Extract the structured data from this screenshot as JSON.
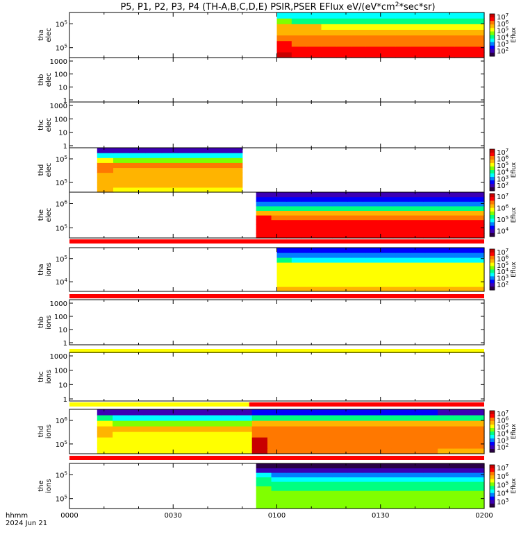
{
  "title_parts": [
    "P5, P1, P2, P3, P4 (TH-A,B,C,D,E) PSIR,PSER EFlux eV/(eV*cm",
    "2",
    "*sec*sr)"
  ],
  "time_axis": {
    "ticks": [
      "0000",
      "0030",
      "0100",
      "0130",
      "0200"
    ],
    "label_line1": "hhmm",
    "label_line2": "2024 Jun 21"
  },
  "colors": {
    "flag_red": "#ff0000",
    "flag_yellow": "#ffff00",
    "frame": "#000000",
    "colormap": [
      "#ffffff",
      "#2a0046",
      "#3c00b4",
      "#0000ff",
      "#0080ff",
      "#00ffff",
      "#00ff80",
      "#80ff00",
      "#ffff00",
      "#ffb400",
      "#ff7800",
      "#ff0000",
      "#c80000"
    ]
  },
  "chart_data": [
    {
      "type": "heatmap",
      "probe": "tha",
      "species": "elec",
      "ylabel": [
        "tha",
        "elec"
      ],
      "y_ticks": [
        {
          "base": "10",
          "exp": "5"
        },
        {
          "base": "10",
          "exp": "5"
        }
      ],
      "colorbar": {
        "label": "Eflux",
        "ticks": [
          {
            "base": "10",
            "exp": "7"
          },
          {
            "base": "10",
            "exp": "6"
          },
          {
            "base": "10",
            "exp": "5"
          },
          {
            "base": "10",
            "exp": "4"
          },
          {
            "base": "10",
            "exp": "3"
          },
          {
            "base": "10",
            "exp": "2"
          }
        ]
      },
      "coverage_hhmm": [
        "0100",
        "0200"
      ],
      "rows_low_to_high_energy": [
        11.5,
        11,
        10.5,
        10,
        9.3,
        8.6,
        6.5,
        5
      ]
    },
    {
      "type": "heatmap",
      "probe": "thb",
      "species": "elec",
      "ylabel": [
        "thb",
        "elec"
      ],
      "y_ticks": [
        {
          "base": "1000"
        },
        {
          "base": "100"
        },
        {
          "base": "10"
        },
        {
          "base": "1"
        }
      ],
      "coverage_hhmm": null
    },
    {
      "type": "heatmap",
      "probe": "thc",
      "species": "elec",
      "ylabel": [
        "thc",
        "elec"
      ],
      "y_ticks": [
        {
          "base": "1000"
        },
        {
          "base": "100"
        },
        {
          "base": "10"
        },
        {
          "base": "1"
        }
      ],
      "coverage_hhmm": null
    },
    {
      "type": "heatmap",
      "probe": "thd",
      "species": "elec",
      "ylabel": [
        "thd",
        "elec"
      ],
      "y_ticks": [
        {
          "base": "10",
          "exp": "5"
        },
        {
          "base": "10",
          "exp": "5"
        }
      ],
      "colorbar": {
        "label": "Eflux",
        "ticks": [
          {
            "base": "10",
            "exp": "7"
          },
          {
            "base": "10",
            "exp": "6"
          },
          {
            "base": "10",
            "exp": "5"
          },
          {
            "base": "10",
            "exp": "4"
          },
          {
            "base": "10",
            "exp": "3"
          },
          {
            "base": "10",
            "exp": "2"
          }
        ]
      },
      "coverage_hhmm": [
        "0008",
        "0050"
      ],
      "rows_low_to_high_energy": [
        8.5,
        8.7,
        9,
        9.3,
        9.5,
        9.8,
        7.5,
        5,
        2
      ]
    },
    {
      "type": "heatmap",
      "probe": "the",
      "species": "elec",
      "ylabel": [
        "the",
        "elec"
      ],
      "y_ticks": [
        {
          "base": "10",
          "exp": "6"
        },
        {
          "base": "10",
          "exp": "5"
        }
      ],
      "colorbar": {
        "label": "Eflux",
        "ticks": [
          {
            "base": "10",
            "exp": "7"
          },
          {
            "base": "10",
            "exp": "6"
          },
          {
            "base": "10",
            "exp": "5"
          },
          {
            "base": "10",
            "exp": "4"
          }
        ]
      },
      "coverage_hhmm": [
        "0054",
        "0200"
      ],
      "rows_low_to_high_energy": [
        11.3,
        11.3,
        11.2,
        11.1,
        10.5,
        9,
        6,
        4,
        3,
        2
      ],
      "flag_below": {
        "segments": [
          {
            "from": "0000",
            "to": "0200",
            "color": "flag_red"
          }
        ]
      }
    },
    {
      "type": "heatmap",
      "probe": "tha",
      "species": "ions",
      "ylabel": [
        "tha",
        "ions"
      ],
      "y_ticks": [
        {
          "base": "10",
          "exp": "5"
        },
        {
          "base": "10",
          "exp": "4"
        }
      ],
      "colorbar": {
        "label": "Eflux",
        "ticks": [
          {
            "base": "10",
            "exp": "7"
          },
          {
            "base": "10",
            "exp": "6"
          },
          {
            "base": "10",
            "exp": "5"
          },
          {
            "base": "10",
            "exp": "4"
          },
          {
            "base": "10",
            "exp": "3"
          },
          {
            "base": "10",
            "exp": "2"
          }
        ]
      },
      "coverage_hhmm": [
        "0100",
        "0200"
      ],
      "rows_low_to_high_energy": [
        9,
        8.4,
        8.2,
        8.1,
        8,
        7.7,
        5.5,
        4,
        3
      ],
      "flag_below": {
        "segments": [
          {
            "from": "0000",
            "to": "0200",
            "color": "flag_red"
          }
        ]
      }
    },
    {
      "type": "heatmap",
      "probe": "thb",
      "species": "ions",
      "ylabel": [
        "thb",
        "ions"
      ],
      "y_ticks": [
        {
          "base": "1000"
        },
        {
          "base": "100"
        },
        {
          "base": "10"
        },
        {
          "base": "1"
        }
      ],
      "coverage_hhmm": null,
      "flag_below": {
        "segments": [
          {
            "from": "0000",
            "to": "0200",
            "color": "flag_yellow"
          }
        ]
      }
    },
    {
      "type": "heatmap",
      "probe": "thc",
      "species": "ions",
      "ylabel": [
        "thc",
        "ions"
      ],
      "y_ticks": [
        {
          "base": "1000"
        },
        {
          "base": "100"
        },
        {
          "base": "10"
        },
        {
          "base": "1"
        }
      ],
      "coverage_hhmm": null,
      "flag_below": {
        "segments": [
          {
            "from": "0000",
            "to": "0052",
            "color": "flag_yellow"
          },
          {
            "from": "0052",
            "to": "0200",
            "color": "flag_red"
          }
        ]
      }
    },
    {
      "type": "heatmap",
      "probe": "thd",
      "species": "ions",
      "ylabel": [
        "thd",
        "ions"
      ],
      "y_ticks": [
        {
          "base": "10",
          "exp": "6"
        },
        {
          "base": "10",
          "exp": "5"
        }
      ],
      "colorbar": {
        "label": "Eflux",
        "ticks": [
          {
            "base": "10",
            "exp": "7"
          },
          {
            "base": "10",
            "exp": "6"
          },
          {
            "base": "10",
            "exp": "5"
          },
          {
            "base": "10",
            "exp": "4"
          },
          {
            "base": "10",
            "exp": "3"
          },
          {
            "base": "10",
            "exp": "2"
          }
        ]
      },
      "coverage_hhmm": [
        "0008",
        "0200"
      ],
      "rows_low_to_high_energy": [
        8.2,
        8.3,
        8.4,
        8.5,
        8.6,
        7.5,
        5.5,
        2
      ],
      "enhancement_after_hhmm": "0052",
      "flag_below": {
        "segments": [
          {
            "from": "0000",
            "to": "0200",
            "color": "flag_red"
          }
        ]
      }
    },
    {
      "type": "heatmap",
      "probe": "the",
      "species": "ions",
      "ylabel": [
        "the",
        "ions"
      ],
      "y_ticks": [
        {
          "base": "10",
          "exp": "5"
        },
        {
          "base": "10",
          "exp": "5"
        }
      ],
      "colorbar": {
        "label": "Eflux",
        "ticks": [
          {
            "base": "10",
            "exp": "7"
          },
          {
            "base": "10",
            "exp": "6"
          },
          {
            "base": "10",
            "exp": "5"
          },
          {
            "base": "10",
            "exp": "4"
          },
          {
            "base": "10",
            "exp": "3"
          }
        ]
      },
      "coverage_hhmm": [
        "0054",
        "0200"
      ],
      "rows_low_to_high_energy": [
        7.3,
        7.2,
        7,
        6.8,
        6.5,
        6.2,
        5.5,
        4.5,
        2,
        1
      ]
    }
  ]
}
